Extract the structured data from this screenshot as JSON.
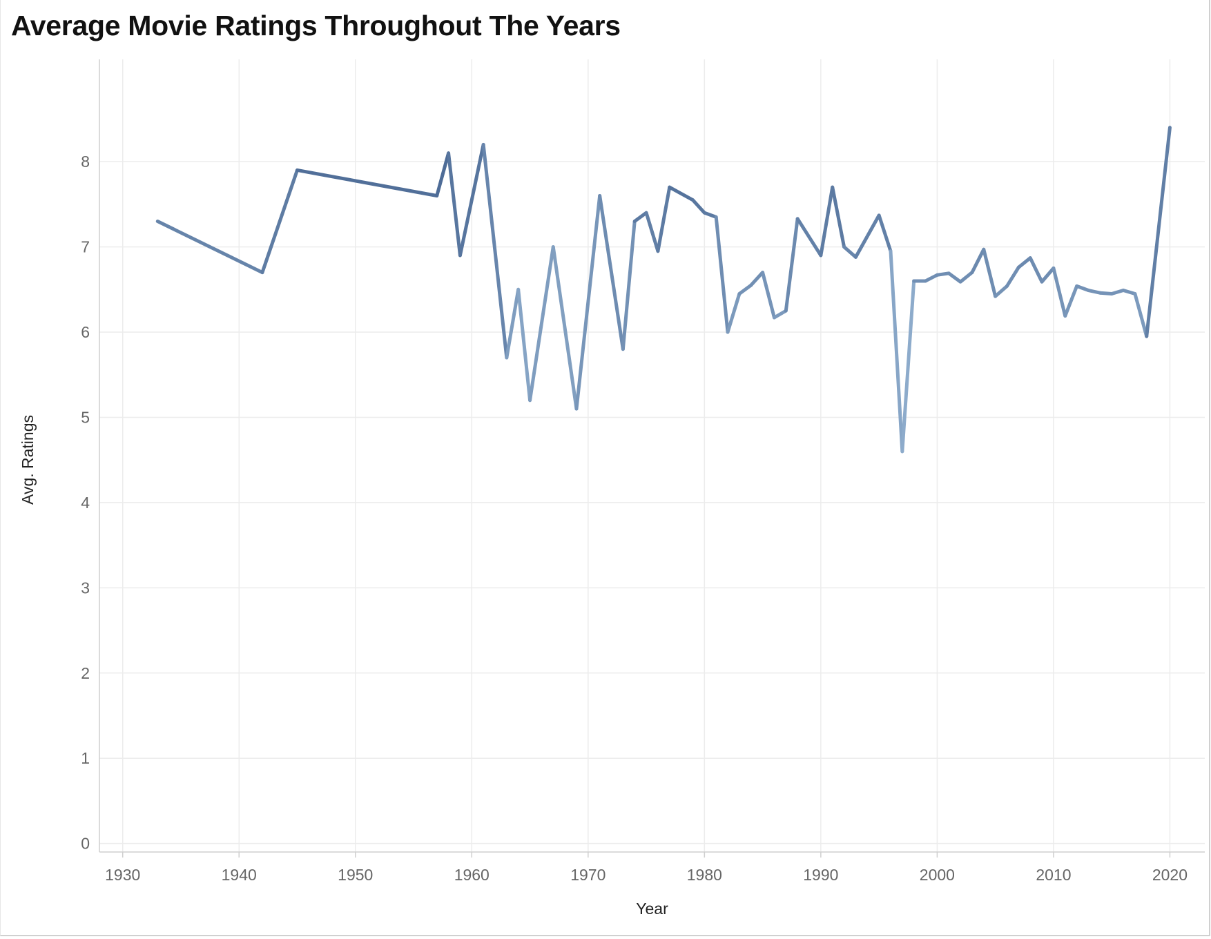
{
  "title": "Average Movie Ratings Throughout The Years",
  "chart_data": {
    "type": "line",
    "title": "Average Movie Ratings Throughout The Years",
    "xlabel": "Year",
    "ylabel": "Avg. Ratings",
    "xlim": [
      1928,
      2023
    ],
    "ylim": [
      -0.1,
      9.2
    ],
    "x_ticks": [
      1930,
      1940,
      1950,
      1960,
      1970,
      1980,
      1990,
      2000,
      2010,
      2020
    ],
    "y_ticks": [
      0,
      1,
      2,
      3,
      4,
      5,
      6,
      7,
      8
    ],
    "grid": true,
    "legend": "none",
    "color_scale": {
      "low": "#a9c7e2",
      "high": "#3f5d8a",
      "domain": [
        4.6,
        8.4
      ]
    },
    "series": [
      {
        "points": [
          [
            1933,
            7.3
          ],
          [
            1942,
            6.7
          ],
          [
            1945,
            7.9
          ],
          [
            1957,
            7.6
          ],
          [
            1958,
            8.1
          ],
          [
            1959,
            6.9
          ],
          [
            1961,
            8.2
          ],
          [
            1963,
            5.7
          ],
          [
            1964,
            6.5
          ],
          [
            1965,
            5.2
          ],
          [
            1967,
            7.0
          ],
          [
            1969,
            5.1
          ],
          [
            1971,
            7.6
          ],
          [
            1973,
            5.8
          ],
          [
            1974,
            7.3
          ],
          [
            1975,
            7.4
          ],
          [
            1976,
            6.95
          ],
          [
            1977,
            7.7
          ],
          [
            1979,
            7.55
          ],
          [
            1980,
            7.4
          ],
          [
            1981,
            7.35
          ],
          [
            1982,
            6.0
          ],
          [
            1983,
            6.45
          ],
          [
            1984,
            6.55
          ],
          [
            1985,
            6.7
          ],
          [
            1986,
            6.17
          ],
          [
            1987,
            6.25
          ],
          [
            1988,
            7.33
          ],
          [
            1990,
            6.9
          ],
          [
            1991,
            7.7
          ],
          [
            1992,
            7.0
          ],
          [
            1993,
            6.88
          ],
          [
            1995,
            7.37
          ],
          [
            1996,
            6.95
          ],
          [
            1997,
            4.6
          ],
          [
            1998,
            6.6
          ],
          [
            1999,
            6.6
          ],
          [
            2000,
            6.67
          ],
          [
            2001,
            6.69
          ],
          [
            2002,
            6.59
          ],
          [
            2003,
            6.7
          ],
          [
            2004,
            6.97
          ],
          [
            2005,
            6.42
          ],
          [
            2006,
            6.54
          ],
          [
            2007,
            6.76
          ],
          [
            2008,
            6.87
          ],
          [
            2009,
            6.59
          ],
          [
            2010,
            6.75
          ],
          [
            2011,
            6.19
          ],
          [
            2012,
            6.54
          ],
          [
            2013,
            6.49
          ],
          [
            2014,
            6.46
          ],
          [
            2015,
            6.45
          ],
          [
            2016,
            6.49
          ],
          [
            2017,
            6.45
          ],
          [
            2018,
            5.95
          ],
          [
            2020,
            8.4
          ]
        ]
      }
    ]
  }
}
